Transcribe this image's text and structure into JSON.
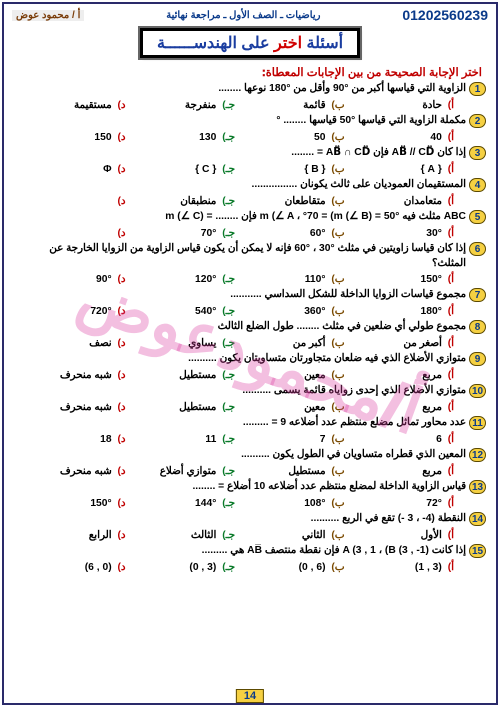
{
  "header": {
    "phone": "01202560239",
    "course": "رياضيات ـ الصف الأول ـ مراجعة نهائية",
    "teacher": "أ / محمود عوض"
  },
  "title": {
    "pre": "أسئلة",
    "red": "اختر",
    "post": "على الهندســــــة"
  },
  "instruction": "اختر الإجابة الصحيحة من بين الإجابات المعطاة:",
  "optionLetters": {
    "a": "أ)",
    "b": "ب)",
    "c": "جـ)",
    "د": "د)"
  },
  "watermark": "أ/محمودعوض",
  "page": "14",
  "qs": [
    {
      "n": "1",
      "t": "الزاوية التي قياسها أكبر من °90 وأقل من °180 نوعها ........",
      "a": "حادة",
      "b": "قائمة",
      "c": "منفرجة",
      "d": "مستقيمة"
    },
    {
      "n": "2",
      "t": "مكملة الزاوية التي قياسها °50 قياسها ........ °",
      "a": "40",
      "b": "50",
      "c": "130",
      "d": "150"
    },
    {
      "n": "3",
      "t": "إذا كان AB⃡ // CD⃡  فإن  AB⃡ ∩ CD⃡ = ........",
      "a": "{ A }",
      "b": "{ B }",
      "c": "{ C }",
      "d": "Φ"
    },
    {
      "n": "4",
      "t": "المستقيمان العموديان على ثالث يكونان ................",
      "a": "متعامدان",
      "b": "متقاطعان",
      "c": "منطبقان",
      "d": ""
    },
    {
      "n": "5",
      "t": "ABC مثلث فيه °50 = (m (∠ A ، °70 = (m (∠ B فإن ........ = (m (∠ C",
      "a": "°30",
      "b": "°60",
      "c": "°70",
      "d": ""
    },
    {
      "n": "6",
      "t": "إذا كان قياسا زاويتين في مثلث °30 ، °60 فإنه لا يمكن أن يكون قياس الزاوية من الزوايا الخارجة عن المثلث؟",
      "a": "°150",
      "b": "°110",
      "c": "°120",
      "d": "°90"
    },
    {
      "n": "7",
      "t": "مجموع قياسات الزوايا الداخلة للشكل السداسي ...........",
      "a": "°180",
      "b": "°360",
      "c": "°540",
      "d": "°720"
    },
    {
      "n": "8",
      "t": "مجموع طولي أي ضلعين في مثلث ........ طول الضلع الثالث",
      "a": "أصغر من",
      "b": "أكبر من",
      "c": "يساوي",
      "d": "نصف"
    },
    {
      "n": "9",
      "t": "متوازي الأضلاع الذي فيه ضلعان متجاورتان متساويتان يكون ..........",
      "a": "مربع",
      "b": "معين",
      "c": "مستطيل",
      "d": "شبه منحرف"
    },
    {
      "n": "10",
      "t": "متوازي الأضلاع الذي إحدى زواياه قائمة يسمى ..........",
      "a": "مربع",
      "b": "معين",
      "c": "مستطيل",
      "d": "شبه منحرف"
    },
    {
      "n": "11",
      "t": "عدد محاور تماثل مضلع منتظم عدد أضلاعه 9 = .........",
      "a": "6",
      "b": "7",
      "c": "11",
      "d": "18"
    },
    {
      "n": "12",
      "t": "المعين الذي قطراه متساويان في الطول يكون ..........",
      "a": "مربع",
      "b": "مستطيل",
      "c": "متوازي أضلاع",
      "d": "شبه منحرف"
    },
    {
      "n": "13",
      "t": "قياس الزاوية الداخلة لمضلع منتظم عدد أضلاعه 10 أضلاع = ........",
      "a": "°72",
      "b": "°108",
      "c": "°144",
      "d": "°150"
    },
    {
      "n": "14",
      "t": "النقطة (4- ، 3 -) تقع في الربع ..........",
      "a": "الأول",
      "b": "الثاني",
      "c": "الثالث",
      "d": "الرابع"
    },
    {
      "n": "15",
      "t": "إذا كانت (A (3 , 1 ، (B (3 , -1 فإن نقطة منتصف AB̅ هي .........",
      "a": "(3 , 1)",
      "b": "(6 , 0)",
      "c": "(3 , 0)",
      "d": "(0 , 6)"
    }
  ]
}
